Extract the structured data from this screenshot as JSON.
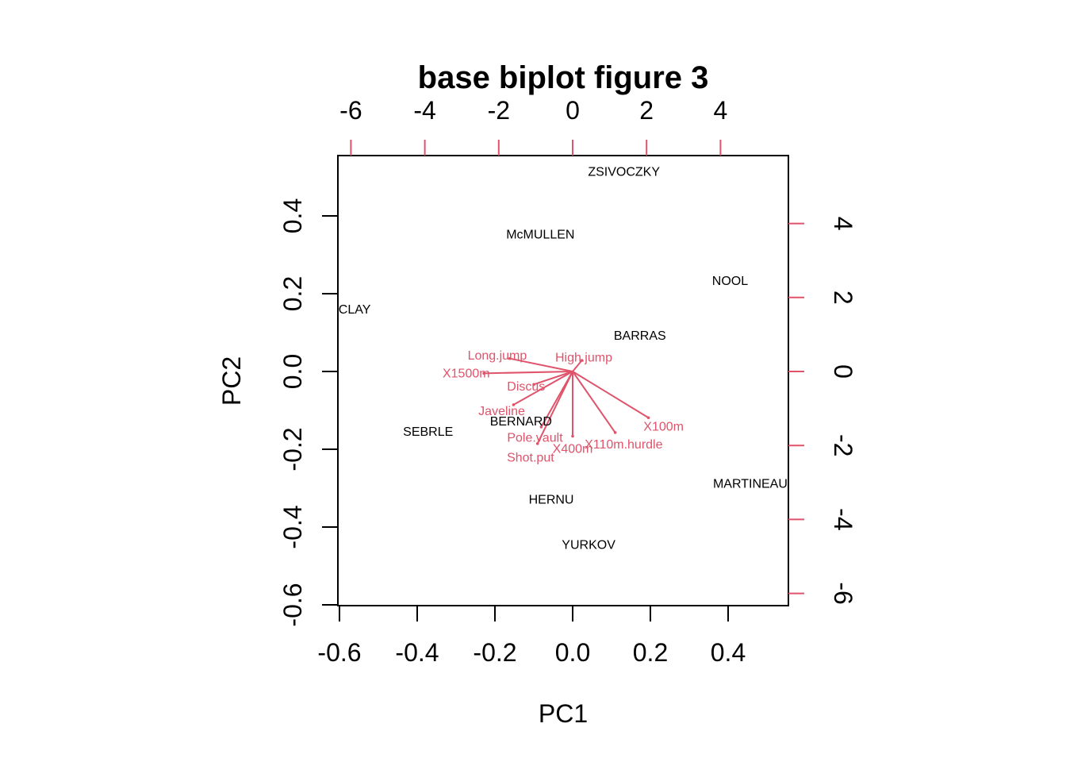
{
  "chart_data": {
    "type": "scatter",
    "title": "base biplot figure 3",
    "xlabel": "PC1",
    "ylabel": "PC2",
    "xlim": [
      -0.6,
      0.55
    ],
    "ylim": [
      -0.6,
      0.55
    ],
    "x_ticks": [
      "-0.6",
      "-0.4",
      "-0.2",
      "0.0",
      "0.2",
      "0.4"
    ],
    "y_ticks": [
      "-0.6",
      "-0.4",
      "-0.2",
      "0.0",
      "0.2",
      "0.4"
    ],
    "secondary_x_ticks": [
      "-6",
      "-4",
      "-2",
      "0",
      "2",
      "4"
    ],
    "secondary_y_ticks": [
      "-6",
      "-4",
      "-2",
      "0",
      "2",
      "4"
    ],
    "secondary_color": "#DF536B",
    "grid": false,
    "observations": [
      {
        "label": "ZSIVOCZKY",
        "x": 0.132,
        "y": 0.512
      },
      {
        "label": "McMULLEN",
        "x": -0.083,
        "y": 0.351
      },
      {
        "label": "NOOL",
        "x": 0.405,
        "y": 0.232
      },
      {
        "label": "CLAY",
        "x": -0.561,
        "y": 0.158
      },
      {
        "label": "BARRAS",
        "x": 0.173,
        "y": 0.091
      },
      {
        "label": "BERNARD",
        "x": -0.133,
        "y": -0.13
      },
      {
        "label": "SEBRLE",
        "x": -0.372,
        "y": -0.156
      },
      {
        "label": "MARTINEAU",
        "x": 0.457,
        "y": -0.29
      },
      {
        "label": "HERNU",
        "x": -0.055,
        "y": -0.331
      },
      {
        "label": "YURKOV",
        "x": 0.041,
        "y": -0.447
      }
    ],
    "variables": [
      {
        "label": "Long.jump",
        "x": -1.7,
        "y": 0.35
      },
      {
        "label": "High.jump",
        "x": 0.25,
        "y": 0.3
      },
      {
        "label": "X1500m",
        "x": -2.4,
        "y": -0.05
      },
      {
        "label": "Discus",
        "x": -1.05,
        "y": -0.35
      },
      {
        "label": "Javeline",
        "x": -1.6,
        "y": -0.9
      },
      {
        "label": "Pole.vault",
        "x": -0.85,
        "y": -1.5
      },
      {
        "label": "Shot.put",
        "x": -0.95,
        "y": -1.95
      },
      {
        "label": "X400m",
        "x": 0.0,
        "y": -1.75
      },
      {
        "label": "X110m.hurdle",
        "x": 1.15,
        "y": -1.65
      },
      {
        "label": "X100m",
        "x": 2.05,
        "y": -1.25
      }
    ]
  }
}
